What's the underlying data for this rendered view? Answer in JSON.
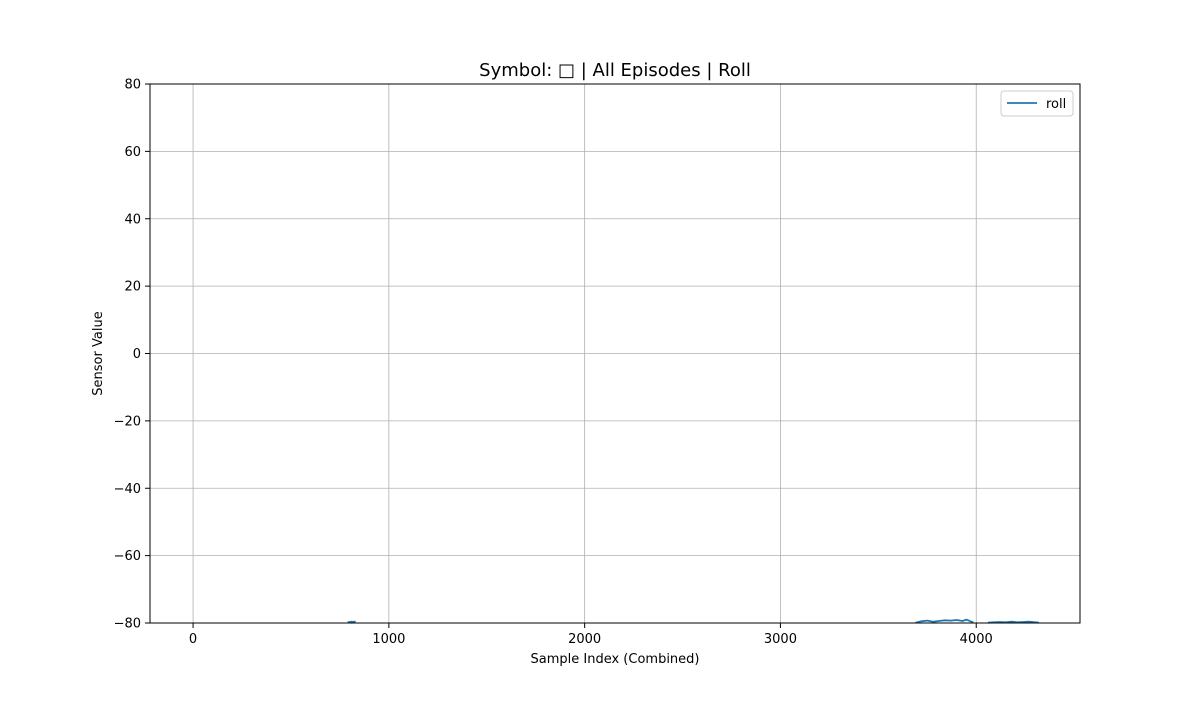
{
  "chart_data": {
    "type": "line",
    "title": "Symbol: □ | All Episodes | Roll",
    "xlabel": "Sample Index (Combined)",
    "ylabel": "Sensor Value",
    "xlim": [
      -220,
      4530
    ],
    "ylim": [
      -80,
      80
    ],
    "xticks": [
      0,
      1000,
      2000,
      3000,
      4000
    ],
    "yticks": [
      80,
      60,
      40,
      20,
      0,
      -20,
      -40,
      -60,
      -80
    ],
    "xtick_labels": [
      "0",
      "1000",
      "2000",
      "3000",
      "4000"
    ],
    "ytick_labels": [
      "80",
      "60",
      "40",
      "20",
      "0",
      "−20",
      "−40",
      "−60",
      "−80"
    ],
    "grid": true,
    "legend": {
      "placement": "top-right",
      "entries": [
        "roll"
      ]
    },
    "series": [
      {
        "name": "roll",
        "color": "#1f77b4",
        "segments": [
          {
            "x": [
              790,
              800,
              810,
              820,
              830
            ],
            "y": [
              -79.8,
              -79.7,
              -79.6,
              -79.7,
              -79.5
            ]
          },
          {
            "x": [
              3690,
              3720,
              3750,
              3780,
              3810,
              3840,
              3870,
              3900,
              3930,
              3950,
              3970,
              3985
            ],
            "y": [
              -79.9,
              -79.5,
              -79.3,
              -79.6,
              -79.4,
              -79.2,
              -79.3,
              -79.1,
              -79.4,
              -79.0,
              -79.5,
              -79.8
            ]
          },
          {
            "x": [
              4060,
              4090,
              4120,
              4150,
              4180,
              4210,
              4240,
              4270,
              4300,
              4320
            ],
            "y": [
              -79.9,
              -79.8,
              -79.7,
              -79.8,
              -79.6,
              -79.8,
              -79.7,
              -79.6,
              -79.8,
              -79.9
            ]
          }
        ]
      }
    ]
  }
}
